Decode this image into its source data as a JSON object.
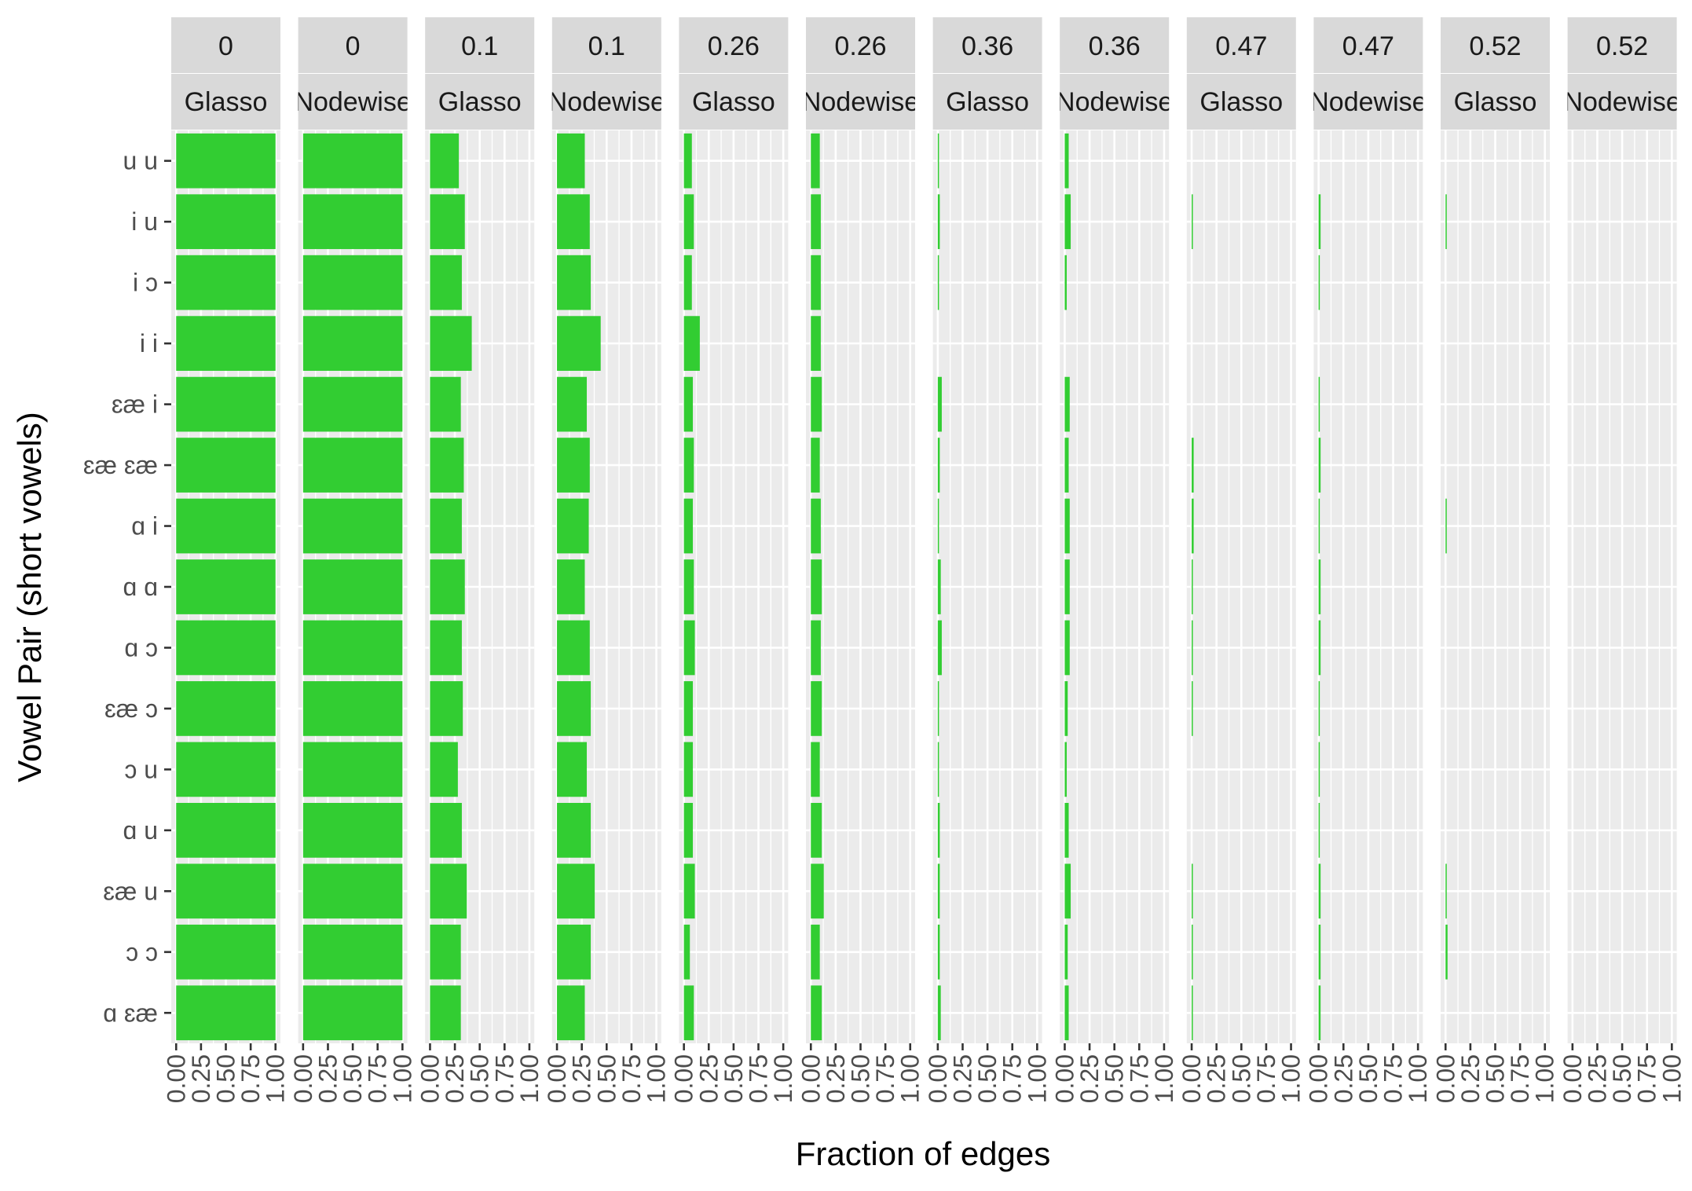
{
  "chart_data": {
    "type": "bar",
    "orientation": "horizontal",
    "xlabel": "Fraction of edges",
    "ylabel": "Vowel Pair (short vowels)",
    "xlim": [
      0,
      1
    ],
    "x_ticks": [
      "0.00",
      "0.25",
      "0.50",
      "0.75",
      "1.00"
    ],
    "categories": [
      "u u",
      "i u",
      "i ɔ",
      "i i",
      "ɛæ i",
      "ɛæ ɛæ",
      "ɑ i",
      "ɑ ɑ",
      "ɑ ɔ",
      "ɛæ ɔ",
      "ɔ u",
      "ɑ u",
      "ɛæ u",
      "ɔ ɔ",
      "ɑ ɛæ"
    ],
    "bar_color": "#32CD32",
    "panel_background": "#EBEBEB",
    "strip_background": "#D9D9D9",
    "grid": true,
    "panels": [
      {
        "strip_top": "0",
        "strip_bottom": "Glasso",
        "values": [
          1,
          1,
          1,
          1,
          1,
          1,
          1,
          1,
          1,
          1,
          1,
          1,
          1,
          1,
          1
        ]
      },
      {
        "strip_top": "0",
        "strip_bottom": "Nodewise",
        "values": [
          1,
          1,
          1,
          1,
          1,
          1,
          1,
          1,
          1,
          1,
          1,
          1,
          1,
          1,
          1
        ]
      },
      {
        "strip_top": "0.1",
        "strip_bottom": "Glasso",
        "values": [
          0.29,
          0.35,
          0.32,
          0.42,
          0.31,
          0.34,
          0.32,
          0.35,
          0.32,
          0.33,
          0.28,
          0.32,
          0.37,
          0.31,
          0.31
        ]
      },
      {
        "strip_top": "0.1",
        "strip_bottom": "Nodewise",
        "values": [
          0.28,
          0.33,
          0.34,
          0.44,
          0.3,
          0.33,
          0.32,
          0.28,
          0.33,
          0.34,
          0.3,
          0.34,
          0.38,
          0.34,
          0.28
        ]
      },
      {
        "strip_top": "0.26",
        "strip_bottom": "Glasso",
        "values": [
          0.08,
          0.1,
          0.08,
          0.16,
          0.09,
          0.1,
          0.09,
          0.1,
          0.11,
          0.09,
          0.09,
          0.09,
          0.11,
          0.06,
          0.1
        ]
      },
      {
        "strip_top": "0.26",
        "strip_bottom": "Nodewise",
        "values": [
          0.09,
          0.1,
          0.1,
          0.1,
          0.11,
          0.09,
          0.1,
          0.11,
          0.1,
          0.11,
          0.09,
          0.11,
          0.13,
          0.09,
          0.11
        ]
      },
      {
        "strip_top": "0.36",
        "strip_bottom": "Glasso",
        "values": [
          0.01,
          0.02,
          0.01,
          0.0,
          0.04,
          0.02,
          0.01,
          0.03,
          0.04,
          0.01,
          0.01,
          0.02,
          0.02,
          0.02,
          0.03
        ]
      },
      {
        "strip_top": "0.36",
        "strip_bottom": "Nodewise",
        "values": [
          0.04,
          0.06,
          0.02,
          0.0,
          0.05,
          0.04,
          0.05,
          0.05,
          0.05,
          0.03,
          0.02,
          0.04,
          0.06,
          0.03,
          0.04
        ]
      },
      {
        "strip_top": "0.47",
        "strip_bottom": "Glasso",
        "values": [
          0.0,
          0.01,
          0.0,
          0.0,
          0.0,
          0.02,
          0.02,
          0.01,
          0.01,
          0.01,
          0.0,
          0.0,
          0.01,
          0.01,
          0.01
        ]
      },
      {
        "strip_top": "0.47",
        "strip_bottom": "Nodewise",
        "values": [
          0.0,
          0.02,
          0.01,
          0.0,
          0.01,
          0.02,
          0.01,
          0.02,
          0.02,
          0.01,
          0.01,
          0.01,
          0.02,
          0.02,
          0.02
        ]
      },
      {
        "strip_top": "0.52",
        "strip_bottom": "Glasso",
        "values": [
          0.0,
          0.01,
          0.0,
          0.0,
          0.0,
          0.0,
          0.01,
          0.0,
          0.0,
          0.0,
          0.0,
          0.0,
          0.01,
          0.02,
          0.0
        ]
      },
      {
        "strip_top": "0.52",
        "strip_bottom": "Nodewise",
        "values": [
          0,
          0,
          0,
          0,
          0,
          0,
          0,
          0,
          0,
          0,
          0,
          0,
          0,
          0,
          0
        ]
      }
    ]
  }
}
